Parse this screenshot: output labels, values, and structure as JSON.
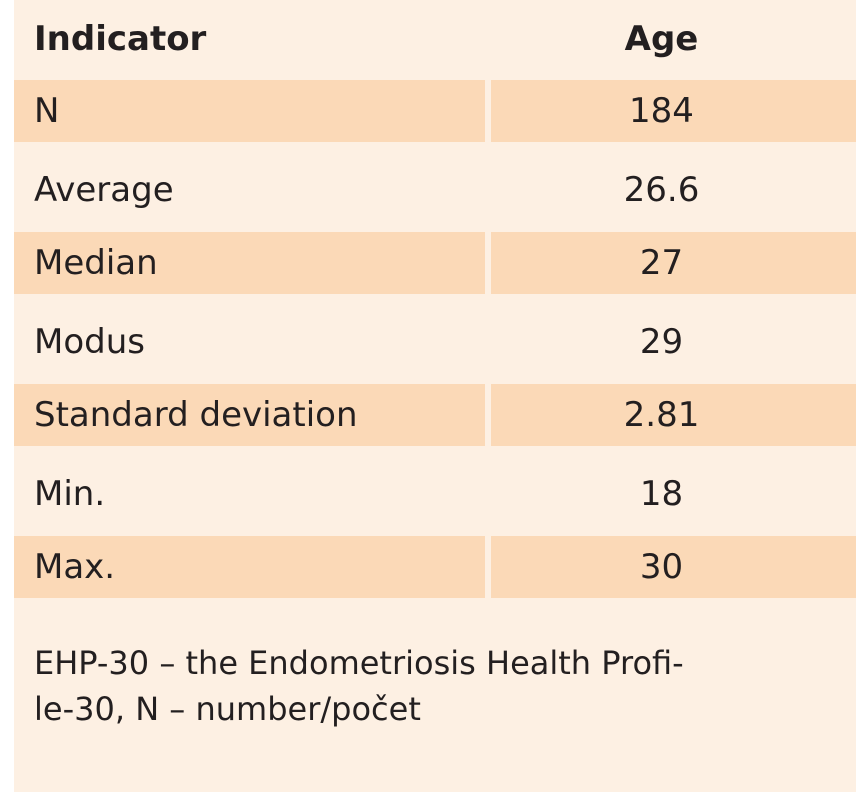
{
  "table": {
    "headers": {
      "indicator": "Indicator",
      "age": "Age"
    },
    "rows": [
      {
        "label": "N",
        "value": "184"
      },
      {
        "label": "Average",
        "value": "26.6"
      },
      {
        "label": "Median",
        "value": "27"
      },
      {
        "label": "Modus",
        "value": "29"
      },
      {
        "label": "Standard deviation",
        "value": "2.81"
      },
      {
        "label": "Min.",
        "value": "18"
      },
      {
        "label": "Max.",
        "value": "30"
      }
    ]
  },
  "footnote": {
    "line1": "EHP-30 – the Endometriosis Health Profi-",
    "line2": "le-30, N – number/počet"
  },
  "colors": {
    "background": "#fdf0e3",
    "shaded_row": "#fbd9b7",
    "text": "#231f20"
  }
}
